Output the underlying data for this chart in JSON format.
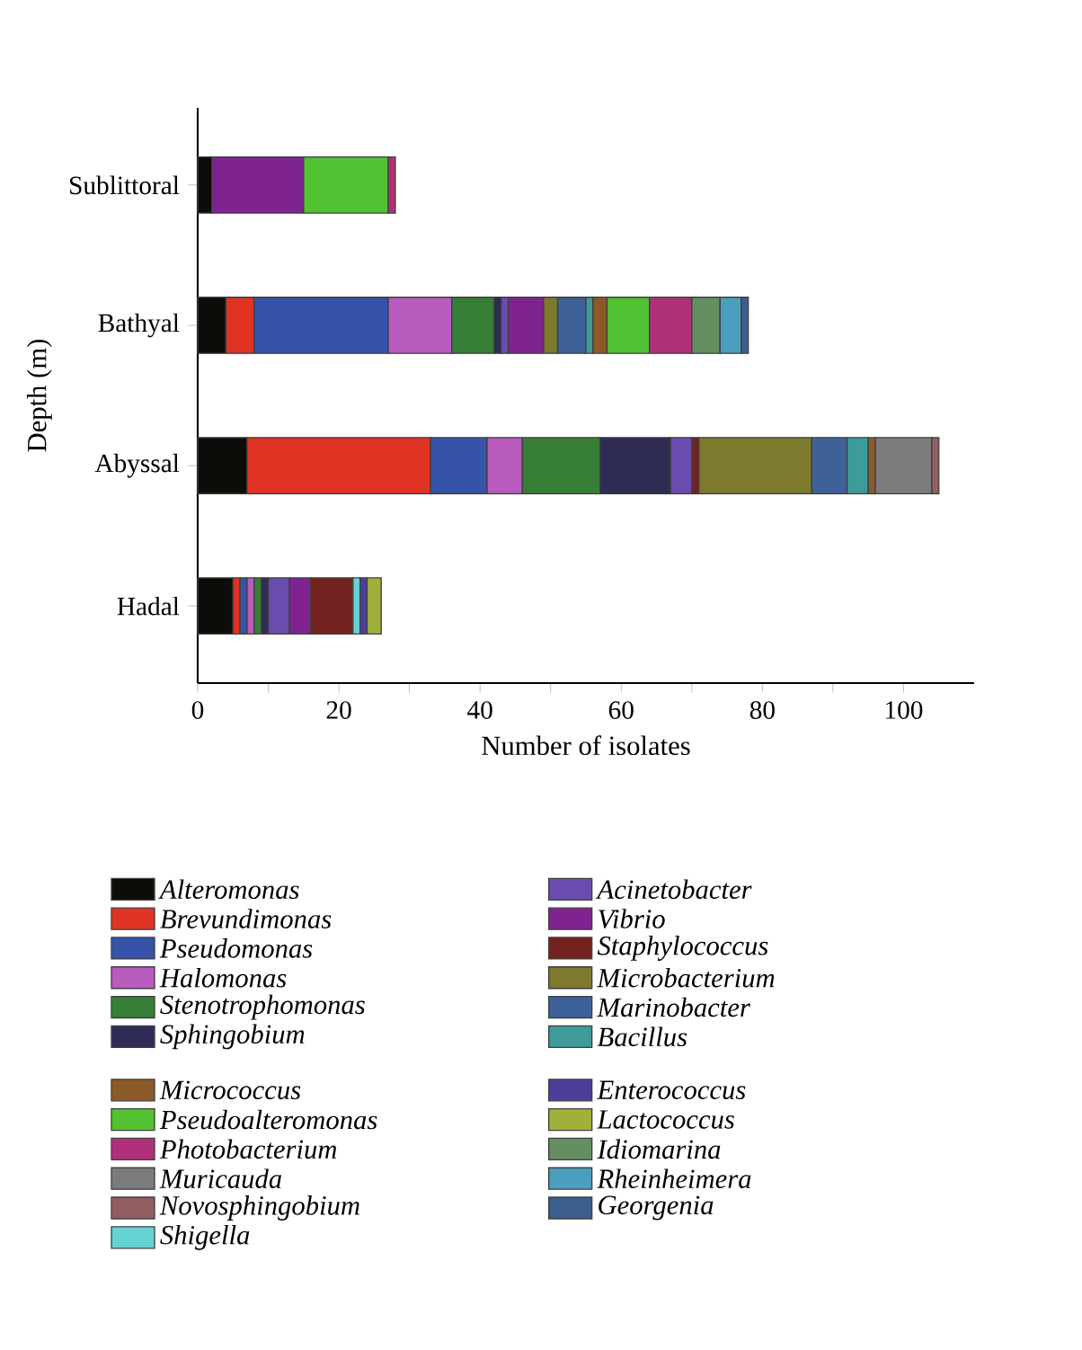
{
  "chart_data": {
    "type": "bar",
    "orientation": "horizontal",
    "stacked": true,
    "xlabel": "Number of isolates",
    "ylabel": "Depth (m)",
    "categories": [
      "Sublittoral",
      "Bathyal",
      "Abyssal",
      "Hadal"
    ],
    "xlim": [
      0,
      110
    ],
    "xticks": [
      0,
      {
        "value": 10,
        "label": null
      },
      20,
      {
        "value": 30,
        "label": null
      },
      40,
      {
        "value": 50,
        "label": null
      },
      60,
      {
        "value": 70,
        "label": null
      },
      80,
      {
        "value": 90,
        "label": null
      },
      100
    ],
    "legend": "bottom",
    "series": [
      {
        "name": "Alteromonas",
        "color": "#0b0d08",
        "values": [
          2,
          4,
          7,
          5
        ]
      },
      {
        "name": "Brevundimonas",
        "color": "#e03323",
        "values": [
          null,
          4,
          26,
          1
        ]
      },
      {
        "name": "Pseudomonas",
        "color": "#3553a8",
        "values": [
          null,
          19,
          8,
          1
        ]
      },
      {
        "name": "Halomonas",
        "color": "#b95bbf",
        "values": [
          null,
          9,
          5,
          1
        ]
      },
      {
        "name": "Stenotrophomonas",
        "color": "#377e36",
        "values": [
          null,
          6,
          11,
          1
        ]
      },
      {
        "name": "Sphingobium",
        "color": "#2e2b55",
        "values": [
          null,
          1,
          10,
          1
        ]
      },
      {
        "name": "Acinetobacter",
        "color": "#6a4cae",
        "values": [
          null,
          1,
          3,
          3
        ]
      },
      {
        "name": "Vibrio",
        "color": "#7f2390",
        "values": [
          13,
          5,
          null,
          3
        ]
      },
      {
        "name": "Staphylococcus",
        "color": "#74221f",
        "values": [
          null,
          null,
          1,
          6
        ]
      },
      {
        "name": "Microbacterium",
        "color": "#7d7a2e",
        "values": [
          null,
          2,
          16,
          null
        ]
      },
      {
        "name": "Marinobacter",
        "color": "#3e6199",
        "values": [
          null,
          4,
          5,
          null
        ]
      },
      {
        "name": "Bacillus",
        "color": "#3d9b99",
        "values": [
          null,
          1,
          3,
          null
        ]
      },
      {
        "name": "Micrococcus",
        "color": "#8c5a28",
        "values": [
          null,
          2,
          1,
          null
        ]
      },
      {
        "name": "Pseudoalteromonas",
        "color": "#52c232",
        "values": [
          12,
          6,
          null,
          null
        ]
      },
      {
        "name": "Photobacterium",
        "color": "#b03078",
        "values": [
          1,
          6,
          null,
          null
        ]
      },
      {
        "name": "Muricauda",
        "color": "#7d7a7d",
        "values": [
          null,
          null,
          8,
          null
        ]
      },
      {
        "name": "Novosphingobium",
        "color": "#935d62",
        "values": [
          null,
          null,
          1,
          null
        ]
      },
      {
        "name": "Shigella",
        "color": "#66d3d3",
        "values": [
          null,
          null,
          null,
          1
        ]
      },
      {
        "name": "Enterococcus",
        "color": "#4b3f9a",
        "values": [
          null,
          null,
          null,
          1
        ]
      },
      {
        "name": "Lactococcus",
        "color": "#a0b03a",
        "values": [
          null,
          null,
          null,
          2
        ]
      },
      {
        "name": "Idiomarina",
        "color": "#648e60",
        "values": [
          null,
          4,
          null,
          null
        ]
      },
      {
        "name": "Rheinheimera",
        "color": "#4a9fbf",
        "values": [
          null,
          3,
          null,
          null
        ]
      },
      {
        "name": "Georgenia",
        "color": "#3b5e8c",
        "values": [
          null,
          1,
          null,
          null
        ]
      }
    ]
  }
}
